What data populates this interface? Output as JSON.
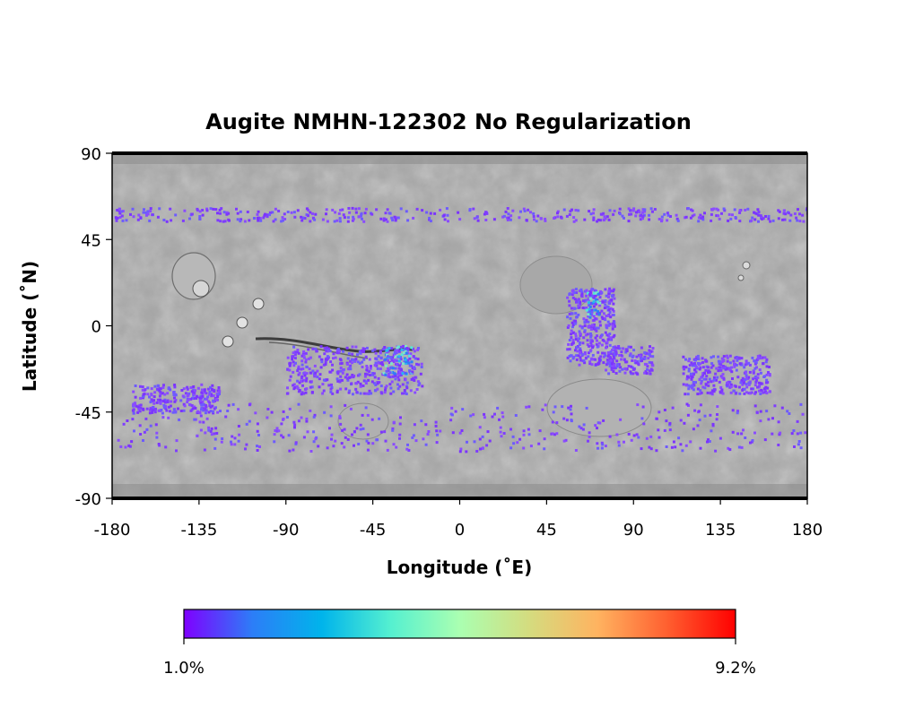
{
  "title": "Augite NMHN-122302 No Regularization",
  "axes": {
    "xlabel": "Longitude (˚E)",
    "ylabel": "Latitude (˚N)",
    "xticks": [
      "-180",
      "-135",
      "-90",
      "-45",
      "0",
      "45",
      "90",
      "135",
      "180"
    ],
    "yticks": [
      "90",
      "45",
      "0",
      "-45",
      "-90"
    ],
    "xlim": [
      -180,
      180
    ],
    "ylim": [
      -90,
      90
    ]
  },
  "basemap": "grey shaded-relief map of Mars (equirectangular)",
  "colorbar": {
    "colormap": "rainbow",
    "colors": [
      "#7f00ff",
      "#2c7ef7",
      "#00b4eb",
      "#55f0d0",
      "#aaffb1",
      "#d4dc7f",
      "#ffb360",
      "#ff6030",
      "#ff0000"
    ],
    "min_label": "1.0%",
    "max_label": "9.2%",
    "min": 1.0,
    "max": 9.2
  },
  "chart_data": {
    "type": "heatmap",
    "title": "Augite NMHN-122302 No Regularization",
    "xlabel": "Longitude (˚E)",
    "ylabel": "Latitude (˚N)",
    "xlim": [
      -180,
      180
    ],
    "ylim": [
      -90,
      90
    ],
    "value_range": [
      1.0,
      9.2
    ],
    "value_unit": "%",
    "detected_regions": [
      {
        "lon": [
          -170,
          -125
        ],
        "lat": [
          -45,
          -30
        ],
        "level": "low"
      },
      {
        "lon": [
          -90,
          -20
        ],
        "lat": [
          -35,
          -10
        ],
        "level": "low"
      },
      {
        "lon": [
          -40,
          -25
        ],
        "lat": [
          -25,
          -10
        ],
        "level": "medium"
      },
      {
        "lon": [
          55,
          80
        ],
        "lat": [
          -20,
          20
        ],
        "level": "low"
      },
      {
        "lon": [
          65,
          72
        ],
        "lat": [
          5,
          18
        ],
        "level": "medium"
      },
      {
        "lon": [
          75,
          100
        ],
        "lat": [
          -25,
          -10
        ],
        "level": "low"
      },
      {
        "lon": [
          115,
          160
        ],
        "lat": [
          -35,
          -15
        ],
        "level": "low"
      },
      {
        "lon": [
          -180,
          180
        ],
        "lat": [
          55,
          62
        ],
        "level": "low"
      },
      {
        "lon": [
          -180,
          180
        ],
        "lat": [
          -65,
          -40
        ],
        "level": "low"
      }
    ]
  }
}
